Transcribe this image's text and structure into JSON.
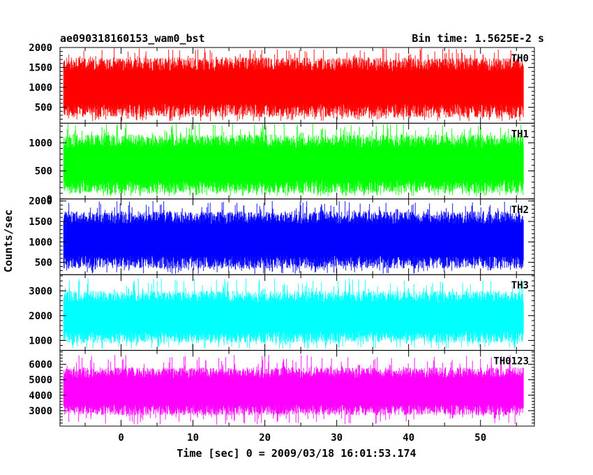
{
  "chart_data": {
    "type": "line",
    "title": "ae090318160153_wam0_bst",
    "subtitle": "Bin time: 1.5625E-2 s",
    "xlabel": "Time [sec] 0 = 2009/03/18 16:01:53.174",
    "ylabel": "Counts/sec",
    "xlim": [
      -8.5,
      57.5
    ],
    "xticks": [
      0,
      10,
      20,
      30,
      40,
      50
    ],
    "x_data_range": [
      -8,
      56
    ],
    "series": [
      {
        "name": "TH0",
        "color": "#ff0000",
        "ylim": [
          100,
          2000
        ],
        "yticks": [
          500,
          1000,
          1500,
          2000
        ],
        "typical_min": 250,
        "typical_max": 1750,
        "peak_max": 2000,
        "trough_min": 150
      },
      {
        "name": "TH1",
        "color": "#00ff00",
        "ylim": [
          0,
          1350
        ],
        "yticks": [
          0,
          500,
          1000
        ],
        "typical_min": 100,
        "typical_max": 1150,
        "peak_max": 1350,
        "trough_min": 50
      },
      {
        "name": "TH2",
        "color": "#0000ff",
        "ylim": [
          200,
          2050
        ],
        "yticks": [
          500,
          1000,
          1500,
          2000
        ],
        "typical_min": 350,
        "typical_max": 1750,
        "peak_max": 2000,
        "trough_min": 220
      },
      {
        "name": "TH3",
        "color": "#00ffff",
        "ylim": [
          600,
          3650
        ],
        "yticks": [
          1000,
          2000,
          3000
        ],
        "typical_min": 900,
        "typical_max": 3000,
        "peak_max": 3500,
        "trough_min": 650
      },
      {
        "name": "TH0123",
        "color": "#ff00ff",
        "ylim": [
          2000,
          6900
        ],
        "yticks": [
          3000,
          4000,
          5000,
          6000
        ],
        "typical_min": 2700,
        "typical_max": 5800,
        "peak_max": 6600,
        "trough_min": 2100
      }
    ]
  }
}
